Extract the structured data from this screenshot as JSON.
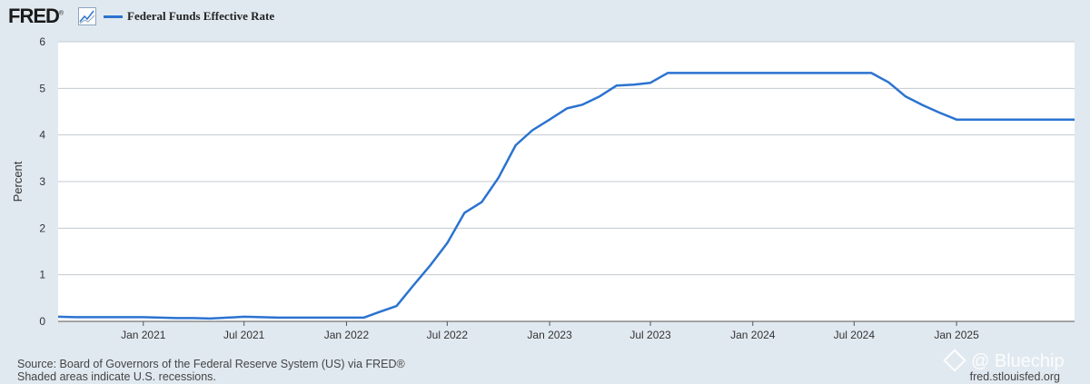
{
  "header": {
    "logo_text": "FRED",
    "logo_mark": "®",
    "legend_label": "Federal Funds Effective Rate",
    "legend_color": "#2b73d0"
  },
  "footer": {
    "source_line": "Source: Board of Governors of the Federal Reserve System (US) via FRED®",
    "recession_note": "Shaded areas indicate U.S. recessions.",
    "site": "fred.stlouisfed.org"
  },
  "watermark": {
    "text": "@ Bluechip"
  },
  "icons": {
    "logo_chart": "line-chart-icon",
    "watermark": "diamond-icon"
  },
  "chart_data": {
    "type": "line",
    "ylabel": "Percent",
    "ylim": [
      0,
      6
    ],
    "yticks": [
      0,
      1,
      2,
      3,
      4,
      5,
      6
    ],
    "xlim": [
      "2020-08-01",
      "2025-08-01"
    ],
    "xticks": [
      {
        "date": "2021-01-01",
        "label": "Jan 2021"
      },
      {
        "date": "2021-07-01",
        "label": "Jul 2021"
      },
      {
        "date": "2022-01-01",
        "label": "Jan 2022"
      },
      {
        "date": "2022-07-01",
        "label": "Jul 2022"
      },
      {
        "date": "2023-01-01",
        "label": "Jan 2023"
      },
      {
        "date": "2023-07-01",
        "label": "Jul 2023"
      },
      {
        "date": "2024-01-01",
        "label": "Jan 2024"
      },
      {
        "date": "2024-07-01",
        "label": "Jul 2024"
      },
      {
        "date": "2025-01-01",
        "label": "Jan 2025"
      }
    ],
    "grid": true,
    "legend_position": "top",
    "series": [
      {
        "name": "Federal Funds Effective Rate",
        "color": "#2b73d0",
        "x": [
          "2020-08-01",
          "2020-09-01",
          "2020-10-01",
          "2020-11-01",
          "2020-12-01",
          "2021-01-01",
          "2021-02-01",
          "2021-03-01",
          "2021-04-01",
          "2021-05-01",
          "2021-06-01",
          "2021-07-01",
          "2021-08-01",
          "2021-09-01",
          "2021-10-01",
          "2021-11-01",
          "2021-12-01",
          "2022-01-01",
          "2022-02-01",
          "2022-03-01",
          "2022-04-01",
          "2022-05-01",
          "2022-06-01",
          "2022-07-01",
          "2022-08-01",
          "2022-09-01",
          "2022-10-01",
          "2022-11-01",
          "2022-12-01",
          "2023-01-01",
          "2023-02-01",
          "2023-03-01",
          "2023-04-01",
          "2023-05-01",
          "2023-06-01",
          "2023-07-01",
          "2023-08-01",
          "2023-09-01",
          "2023-10-01",
          "2023-11-01",
          "2023-12-01",
          "2024-01-01",
          "2024-02-01",
          "2024-03-01",
          "2024-04-01",
          "2024-05-01",
          "2024-06-01",
          "2024-07-01",
          "2024-08-01",
          "2024-09-01",
          "2024-10-01",
          "2024-11-01",
          "2024-12-01",
          "2025-01-01",
          "2025-02-01",
          "2025-03-01",
          "2025-04-01",
          "2025-05-01",
          "2025-06-01",
          "2025-07-01",
          "2025-08-01"
        ],
        "values": [
          0.1,
          0.09,
          0.09,
          0.09,
          0.09,
          0.09,
          0.08,
          0.07,
          0.07,
          0.06,
          0.08,
          0.1,
          0.09,
          0.08,
          0.08,
          0.08,
          0.08,
          0.08,
          0.08,
          0.2,
          0.33,
          0.77,
          1.21,
          1.68,
          2.33,
          2.56,
          3.08,
          3.78,
          4.1,
          4.33,
          4.57,
          4.65,
          4.83,
          5.06,
          5.08,
          5.12,
          5.33,
          5.33,
          5.33,
          5.33,
          5.33,
          5.33,
          5.33,
          5.33,
          5.33,
          5.33,
          5.33,
          5.33,
          5.33,
          5.13,
          4.83,
          4.64,
          4.48,
          4.33,
          4.33,
          4.33,
          4.33,
          4.33,
          4.33,
          4.33,
          4.33
        ]
      }
    ]
  }
}
